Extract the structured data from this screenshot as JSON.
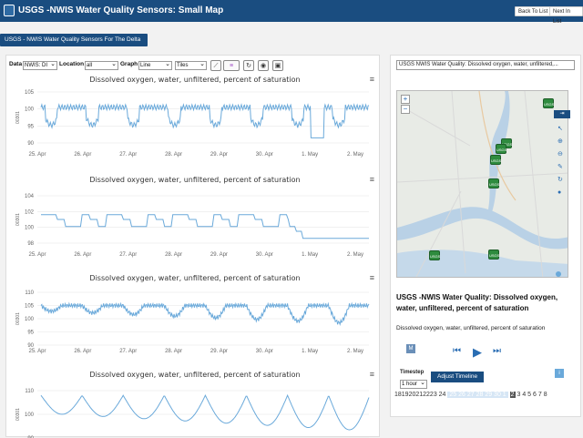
{
  "header": {
    "title": "USGS -NWIS Water Quality Sensors: Small Map",
    "back_label": "Back To List",
    "next_label": "Next In List"
  },
  "tab": {
    "label": "USGS - NWIS Water Quality Sensors For The Delta"
  },
  "controls": {
    "data_label": "Data",
    "data_value": "NWIS: DI",
    "location_label": "Location",
    "location_value": "all",
    "graph_label": "Graph",
    "graph_value": "Line",
    "tiles_value": "Tiles"
  },
  "charts": [
    {
      "title": "Dissolved oxygen, water, unfiltered, percent of saturation",
      "ylabel": "00301",
      "yticks": [
        "105",
        "100",
        "95",
        "90"
      ],
      "xticks": [
        "25. Apr",
        "26. Apr",
        "27. Apr",
        "28. Apr",
        "29. Apr",
        "30. Apr",
        "1. May",
        "2. May"
      ]
    },
    {
      "title": "Dissolved oxygen, water, unfiltered, percent of saturation",
      "ylabel": "00301",
      "yticks": [
        "104",
        "102",
        "100",
        "98"
      ],
      "xticks": [
        "25. Apr",
        "26. Apr",
        "27. Apr",
        "28. Apr",
        "29. Apr",
        "30. Apr",
        "1. May",
        "2. May"
      ]
    },
    {
      "title": "Dissolved oxygen, water, unfiltered, percent of saturation",
      "ylabel": "00301",
      "yticks": [
        "110",
        "105",
        "100",
        "95",
        "90"
      ],
      "xticks": [
        "25. Apr",
        "26. Apr",
        "27. Apr",
        "28. Apr",
        "29. Apr",
        "30. Apr",
        "1. May",
        "2. May"
      ]
    },
    {
      "title": "Dissolved oxygen, water, unfiltered, percent of saturation",
      "ylabel": "00301",
      "yticks": [
        "110",
        "100",
        "90"
      ],
      "xticks": []
    }
  ],
  "map": {
    "select_value": "USGS NWIS Water Quality: Dissolved oxygen, water, unfiltered,...",
    "zoom_in": "+",
    "zoom_out": "−",
    "marker_label": "USGS"
  },
  "info": {
    "title": "USGS -NWIS Water Quality: Dissolved oxygen, water, unfiltered, percent of saturation",
    "subtitle": "Dissolved oxygen, water, unfiltered, percent of saturation"
  },
  "timeline": {
    "timestep_label": "Timestep",
    "timestep_value": "1 hour",
    "adjust_label": "Adjust Timeline",
    "days_before": "181920212223 24",
    "days_selected": "25 26 27 28 29 30 1",
    "current_day": "2",
    "days_after": "3 4 5 6 7 8",
    "m_label": "M",
    "info_label": "i"
  },
  "colors": {
    "header": "#1a4d80",
    "line": "#6aa9da",
    "marker": "#2e8b3e"
  }
}
